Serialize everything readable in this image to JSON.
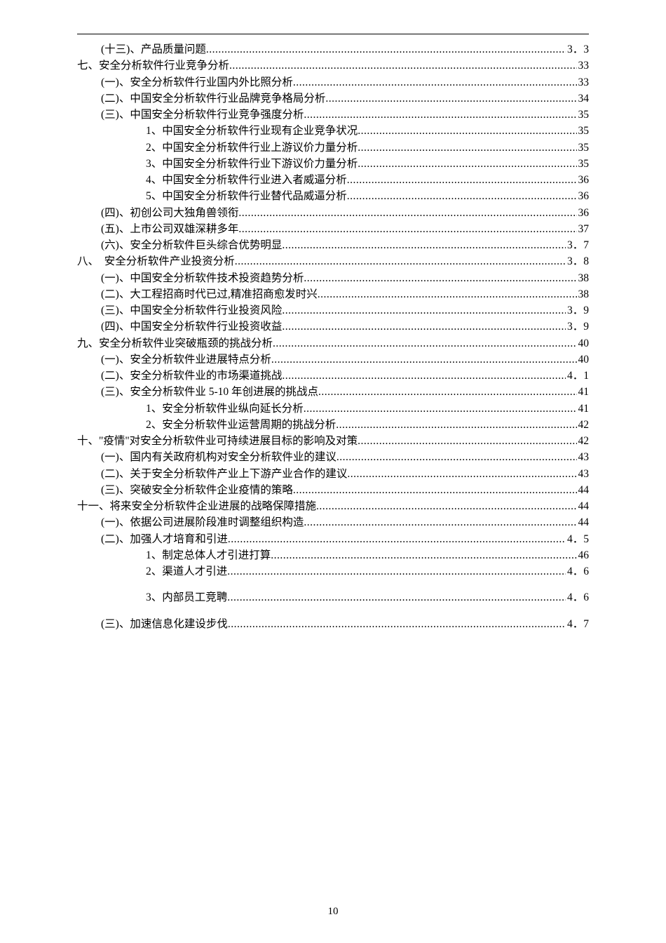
{
  "page_number": "10",
  "toc": [
    {
      "indent": 2,
      "label": "(十三)、产品质量问题 ",
      "page": "3．3"
    },
    {
      "indent": 0,
      "label": "七、安全分析软件行业竞争分析",
      "page": "33"
    },
    {
      "indent": 2,
      "label": "(一)、安全分析软件行业国内外比照分析",
      "page": "33"
    },
    {
      "indent": 2,
      "label": "(二)、中国安全分析软件行业品牌竞争格局分析",
      "page": "34"
    },
    {
      "indent": 2,
      "label": "(三)、中国安全分析软件行业竞争强度分析",
      "page": "35"
    },
    {
      "indent": 3,
      "label": "1、中国安全分析软件行业现有企业竞争状况",
      "page": "35"
    },
    {
      "indent": 3,
      "label": "2、中国安全分析软件行业上游议价力量分析",
      "page": "35"
    },
    {
      "indent": 3,
      "label": "3、中国安全分析软件行业下游议价力量分析",
      "page": "35"
    },
    {
      "indent": 3,
      "label": "4、中国安全分析软件行业进入者威逼分析",
      "page": "36"
    },
    {
      "indent": 3,
      "label": "5、中国安全分析软件行业替代品威逼分析",
      "page": "36"
    },
    {
      "indent": 2,
      "label": "(四)、初创公司大独角兽领衔",
      "page": "36"
    },
    {
      "indent": 2,
      "label": "(五)、上市公司双雄深耕多年",
      "page": "37"
    },
    {
      "indent": 2,
      "label": "(六)、安全分析软件巨头综合优势明显 ",
      "page": "3．7"
    },
    {
      "indent": 0,
      "label": "八、　安全分析软件产业投资分析 ",
      "page": "3．8"
    },
    {
      "indent": 2,
      "label": "(一)、中国安全分析软件技术投资趋势分析",
      "page": "38"
    },
    {
      "indent": 2,
      "label": "(二)、大工程招商时代已过,精准招商愈发时兴",
      "page": "38"
    },
    {
      "indent": 2,
      "label": "(三)、中国安全分析软件行业投资风险 ",
      "page": "3．9"
    },
    {
      "indent": 2,
      "label": "(四)、中国安全分析软件行业投资收益 ",
      "page": "3．9"
    },
    {
      "indent": 0,
      "label": "九、安全分析软件业突破瓶颈的挑战分析",
      "page": "40"
    },
    {
      "indent": 2,
      "label": "(一)、安全分析软件业进展特点分析",
      "page": "40"
    },
    {
      "indent": 2,
      "label": "(二)、安全分析软件业的市场渠道挑战 ",
      "page": "4．1"
    },
    {
      "indent": 2,
      "label": "(三)、安全分析软件业 5-10 年创进展的挑战点",
      "page": "41"
    },
    {
      "indent": 3,
      "label": "1、安全分析软件业纵向延长分析",
      "page": "41"
    },
    {
      "indent": 3,
      "label": "2、安全分析软件业运营周期的挑战分析",
      "page": "42"
    },
    {
      "indent": 0,
      "label": "十、\"疫情\"对安全分析软件业可持续进展目标的影响及对策",
      "page": "42"
    },
    {
      "indent": 2,
      "label": "(一)、国内有关政府机构对安全分析软件业的建议",
      "page": "43"
    },
    {
      "indent": 2,
      "label": "(二)、关于安全分析软件产业上下游产业合作的建议",
      "page": "43"
    },
    {
      "indent": 2,
      "label": "(三)、突破安全分析软件企业疫情的策略",
      "page": "44"
    },
    {
      "indent": 0,
      "label": "十一、将来安全分析软件企业进展的战略保障措施",
      "page": "44"
    },
    {
      "indent": 2,
      "label": "(一)、依据公司进展阶段准时调整组织构造",
      "page": "44"
    },
    {
      "indent": 2,
      "label": "(二)、加强人才培育和引进 ",
      "page": "4．5"
    },
    {
      "indent": 3,
      "label": "1、制定总体人才引进打算",
      "page": "46"
    },
    {
      "indent": 3,
      "label": "2、渠道人才引进 ",
      "page": "4．6"
    },
    {
      "indent": 3,
      "label": "3、内部员工竞聘 ",
      "page": "4．6",
      "gap_before": true
    },
    {
      "indent": 2,
      "label": "(三)、加速信息化建设步伐 ",
      "page": "4．7",
      "gap_before": true
    }
  ]
}
